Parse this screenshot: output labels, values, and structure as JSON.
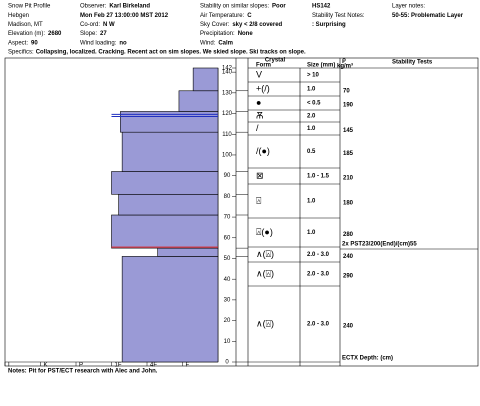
{
  "header": {
    "rows": [
      [
        {
          "text": "Snow Pit Profile"
        },
        {
          "label": "Observer:",
          "value": "Karl Birkeland"
        },
        {
          "label": "Stability on similar slopes:",
          "value": "Poor"
        },
        {
          "value": "HS142"
        },
        {
          "label": "Layer notes:"
        }
      ],
      [
        {
          "text": "Hebgen"
        },
        {
          "value": "Mon Feb 27 13:00:00 MST 2012"
        },
        {
          "label": "Air Temperature:",
          "value": "C"
        },
        {
          "label": "Stability Test Notes:"
        },
        {
          "value": "50-55: Problematic Layer"
        }
      ],
      [
        {
          "text": "Madison, MT"
        },
        {
          "label": "Co-ord:",
          "value": "N W"
        },
        {
          "label": "Sky Cover:",
          "value": "sky < 2/8 covered"
        },
        {
          "value": ": Surprising"
        }
      ],
      [
        {
          "label": "Elevation (m):",
          "value": "2680"
        },
        {
          "label": "Slope:",
          "value": "27"
        },
        {
          "label": "Precipitation:",
          "value": "None"
        }
      ],
      [
        {
          "label": "Aspect:",
          "value": "90"
        },
        {
          "label": "Wind loading:",
          "value": "no"
        },
        {
          "label": "Wind:",
          "value": "Calm"
        }
      ]
    ],
    "specifics": {
      "label": "Specifics:",
      "value": "Collapsing, localized. Cracking. Recent act on sim slopes. We skied slope. Ski tracks on slope."
    }
  },
  "chart_data": {
    "type": "snow-profile",
    "ylim": [
      0,
      142
    ],
    "yticks": [
      0,
      10,
      20,
      30,
      40,
      50,
      60,
      70,
      80,
      90,
      100,
      110,
      120,
      130,
      140,
      142
    ],
    "xticks": [
      {
        "value": 6,
        "label": "I"
      },
      {
        "value": 5,
        "label": "K"
      },
      {
        "value": 4,
        "label": "P"
      },
      {
        "value": 3,
        "label": "1F"
      },
      {
        "value": 2,
        "label": "4F"
      },
      {
        "value": 1,
        "label": "F"
      }
    ],
    "color": "#9a9ad6",
    "layers": [
      {
        "bottom": 0,
        "top": 51,
        "hardness": 2.7
      },
      {
        "bottom": 51,
        "top": 55,
        "hardness": 1.7
      },
      {
        "bottom": 55,
        "top": 71,
        "hardness": 3.0
      },
      {
        "bottom": 71,
        "top": 81,
        "hardness": 2.8
      },
      {
        "bottom": 81,
        "top": 92,
        "hardness": 3.0
      },
      {
        "bottom": 92,
        "top": 111,
        "hardness": 2.7
      },
      {
        "bottom": 111,
        "top": 121,
        "hardness": 2.75
      },
      {
        "bottom": 121,
        "top": 131,
        "hardness": 1.1
      },
      {
        "bottom": 131,
        "top": 142,
        "hardness": 0.7
      }
    ],
    "lines": [
      {
        "height": 55.5,
        "color": "#e02020"
      },
      {
        "height": 119.6,
        "color": "#2030c0"
      },
      {
        "height": 118.6,
        "color": "#2030c0"
      }
    ],
    "columns": {
      "crystal": "Crystal",
      "form": "Form",
      "size": "Size (mm)",
      "rho": "ρ",
      "density": "kg/m³",
      "tests": "Stability Tests"
    },
    "rows": [
      {
        "form": "V",
        "size": "> 10"
      },
      {
        "form": "+(/)",
        "size": "1.0",
        "density": 70
      },
      {
        "form": "●",
        "size": "< 0.5",
        "density": 190
      },
      {
        "form": "Ѫ",
        "size": "2.0"
      },
      {
        "form": "/",
        "size": "1.0",
        "density": 145
      },
      {
        "form": "/(●)",
        "size": "0.5",
        "density": 185
      },
      {
        "form": "⊠",
        "size": "1.0 - 1.5",
        "density": 210
      },
      {
        "form": "⍓",
        "size": "1.0",
        "density": 180
      },
      {
        "form": "⍓(●)",
        "size": "1.0",
        "density": 280
      },
      {
        "form": "∧(⍓)",
        "size": "2.0 - 3.0",
        "density": 240
      },
      {
        "form": "∧(⍓)",
        "size": "2.0 - 3.0",
        "density": 290
      },
      {
        "form": "∧(⍓)",
        "size": "2.0 - 3.0",
        "density": 240
      }
    ],
    "tests": [
      "2x PST23/200(End)/(cm)55",
      "ECTX Depth: (cm)"
    ]
  },
  "footer": {
    "label": "Notes:",
    "value": "Pit for PST/ECT research with Alec and John."
  }
}
